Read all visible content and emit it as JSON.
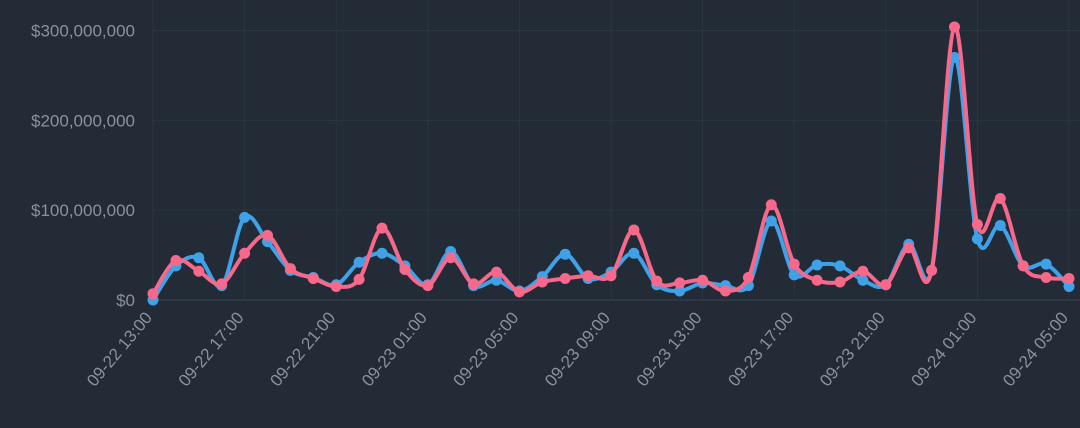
{
  "chart_data": {
    "type": "line",
    "categories": [
      "09-22 13:00",
      null,
      null,
      null,
      "09-22 17:00",
      null,
      null,
      null,
      "09-22 21:00",
      null,
      null,
      null,
      "09-23 01:00",
      null,
      null,
      null,
      "09-23 05:00",
      null,
      null,
      null,
      "09-23 09:00",
      null,
      null,
      null,
      "09-23 13:00",
      null,
      null,
      null,
      "09-23 17:00",
      null,
      null,
      null,
      "09-23 21:00",
      null,
      null,
      null,
      "09-24 01:00",
      null,
      null,
      null,
      "09-24 05:00"
    ],
    "series": [
      {
        "color": "#3fa2e8",
        "values": [
          0,
          38000000,
          47000000,
          16000000,
          92000000,
          65000000,
          33000000,
          25000000,
          17000000,
          42000000,
          52000000,
          38000000,
          17000000,
          54000000,
          16000000,
          22000000,
          10000000,
          26000000,
          51000000,
          24000000,
          31000000,
          52000000,
          17000000,
          10000000,
          19000000,
          16000000,
          16000000,
          88000000,
          28000000,
          39000000,
          38000000,
          22000000,
          17000000,
          62000000,
          33000000,
          270000000,
          68000000,
          83000000,
          38000000,
          40000000,
          15000000
        ]
      },
      {
        "color": "#f7688a",
        "values": [
          7000000,
          44000000,
          32000000,
          18000000,
          52000000,
          72000000,
          35000000,
          24000000,
          15000000,
          23000000,
          80000000,
          34000000,
          16000000,
          47000000,
          18000000,
          31000000,
          9000000,
          20000000,
          24000000,
          27000000,
          27000000,
          78000000,
          21000000,
          19000000,
          22000000,
          10000000,
          25000000,
          106000000,
          40000000,
          22000000,
          20000000,
          32000000,
          17000000,
          58000000,
          33000000,
          304000000,
          84000000,
          113000000,
          38000000,
          25000000,
          24000000
        ]
      }
    ],
    "ylim": [
      0,
      334000000
    ],
    "yticks": [
      {
        "value": 0,
        "label": "$0"
      },
      {
        "value": 100000000,
        "label": "$100,000,000"
      },
      {
        "value": 200000000,
        "label": "$200,000,000"
      },
      {
        "value": 300000000,
        "label": "$300,000,000"
      }
    ],
    "grid": true
  }
}
